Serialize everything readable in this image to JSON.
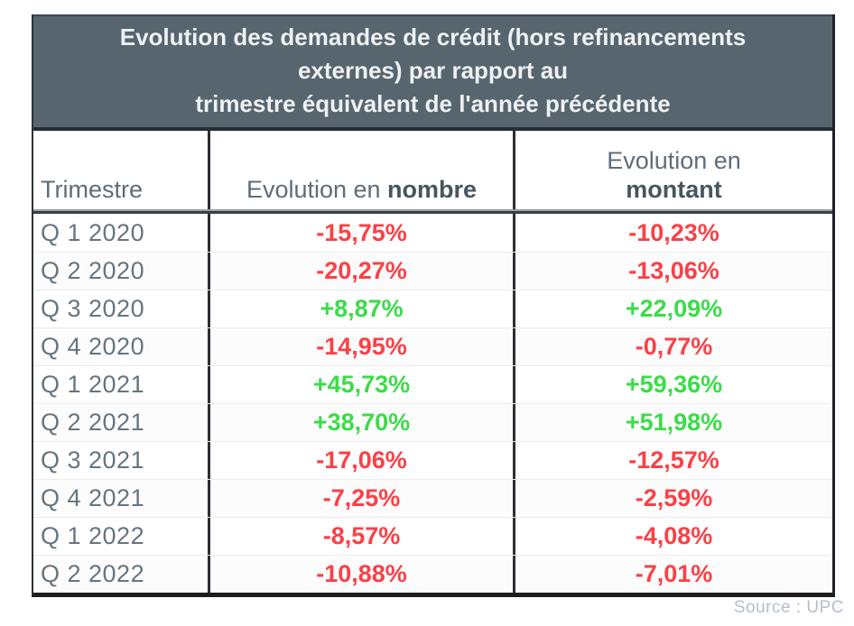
{
  "title": {
    "lines": [
      "Evolution des demandes de crédit (hors refinancements",
      "externes) par rapport au",
      "trimestre équivalent de l'année précédente"
    ]
  },
  "columns": {
    "trimestre": "Trimestre",
    "nombre": {
      "prefix": "Evolution en ",
      "bold": "nombre"
    },
    "montant": {
      "line1": "Evolution en",
      "bold": "montant"
    }
  },
  "rows": [
    {
      "quarter": "Q 1 2020",
      "nombre": "-15,75%",
      "montant": "-10,23%"
    },
    {
      "quarter": "Q 2 2020",
      "nombre": "-20,27%",
      "montant": "-13,06%"
    },
    {
      "quarter": "Q 3 2020",
      "nombre": "+8,87%",
      "montant": "+22,09%"
    },
    {
      "quarter": "Q 4 2020",
      "nombre": "-14,95%",
      "montant": "-0,77%"
    },
    {
      "quarter": "Q 1 2021",
      "nombre": "+45,73%",
      "montant": "+59,36%"
    },
    {
      "quarter": "Q 2 2021",
      "nombre": "+38,70%",
      "montant": "+51,98%"
    },
    {
      "quarter": "Q 3 2021",
      "nombre": "-17,06%",
      "montant": "-12,57%"
    },
    {
      "quarter": "Q 4 2021",
      "nombre": "-7,25%",
      "montant": "-2,59%"
    },
    {
      "quarter": "Q 1 2022",
      "nombre": "-8,57%",
      "montant": "-4,08%"
    },
    {
      "quarter": "Q 2 2022",
      "nombre": "-10,88%",
      "montant": "-7,01%"
    }
  ],
  "footer": {
    "source": "Source : UPC"
  },
  "colors": {
    "header_bg": "#57656f",
    "slate_text": "#5e6d79",
    "positive": "#3bdc49",
    "negative": "#fb4046"
  },
  "chart_data": {
    "type": "table",
    "title": "Evolution des demandes de crédit (hors refinancements externes) par rapport au trimestre équivalent de l'année précédente",
    "columns": [
      "Trimestre",
      "Evolution en nombre",
      "Evolution en montant"
    ],
    "categories": [
      "Q 1 2020",
      "Q 2 2020",
      "Q 3 2020",
      "Q 4 2020",
      "Q 1 2021",
      "Q 2 2021",
      "Q 3 2021",
      "Q 4 2021",
      "Q 1 2022",
      "Q 2 2022"
    ],
    "series": [
      {
        "name": "Evolution en nombre",
        "values": [
          -15.75,
          -20.27,
          8.87,
          -14.95,
          45.73,
          38.7,
          -17.06,
          -7.25,
          -8.57,
          -10.88
        ]
      },
      {
        "name": "Evolution en montant",
        "values": [
          -10.23,
          -13.06,
          22.09,
          -0.77,
          59.36,
          51.98,
          -12.57,
          -2.59,
          -4.08,
          -7.01
        ]
      }
    ],
    "value_unit": "%",
    "source": "Source : UPC",
    "legend_position": "none",
    "grid": false
  }
}
